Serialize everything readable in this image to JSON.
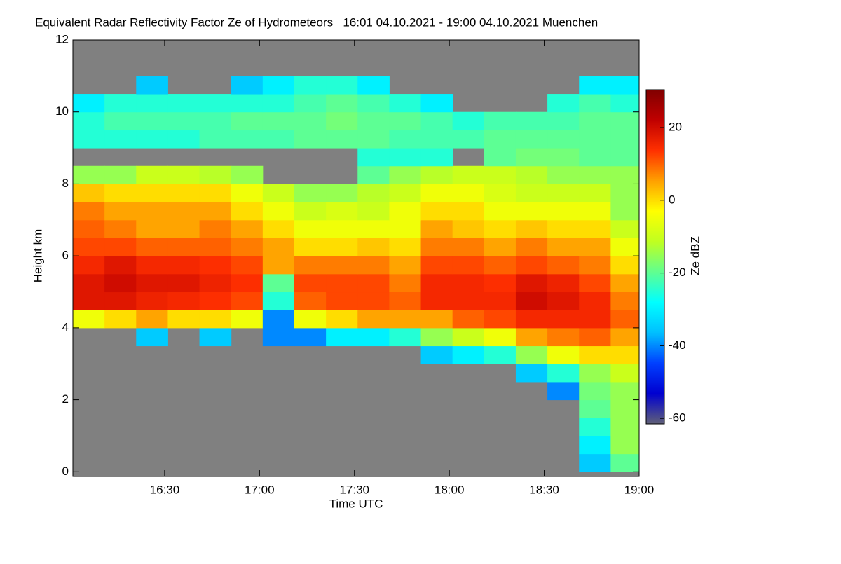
{
  "chart_data": {
    "type": "heatmap",
    "title": "Equivalent Radar Reflectivity Factor Ze of Hydrometeors   16:01 04.10.2021 - 19:00 04.10.2021 Muenchen",
    "xlabel": "Time UTC",
    "ylabel": "Height km",
    "colorbar_label": "Ze dBZ",
    "x": [
      966,
      976,
      986,
      996,
      1006,
      1016,
      1026,
      1036,
      1046,
      1056,
      1066,
      1076,
      1086,
      1096,
      1106,
      1116,
      1126,
      1136
    ],
    "y": [
      0.25,
      0.75,
      1.25,
      1.75,
      2.25,
      2.75,
      3.25,
      3.75,
      4.25,
      4.75,
      5.25,
      5.75,
      6.25,
      6.75,
      7.25,
      7.75,
      8.25,
      8.75,
      9.25,
      9.75,
      10.25,
      10.75,
      11.25,
      11.75
    ],
    "z": [
      [
        null,
        null,
        null,
        null,
        null,
        null,
        null,
        null,
        null,
        null,
        null,
        null,
        null,
        null,
        null,
        null,
        -35,
        -20
      ],
      [
        null,
        null,
        null,
        null,
        null,
        null,
        null,
        null,
        null,
        null,
        null,
        null,
        null,
        null,
        null,
        null,
        -30,
        -15
      ],
      [
        null,
        null,
        null,
        null,
        null,
        null,
        null,
        null,
        null,
        null,
        null,
        null,
        null,
        null,
        null,
        null,
        -25,
        -15
      ],
      [
        null,
        null,
        null,
        null,
        null,
        null,
        null,
        null,
        null,
        null,
        null,
        null,
        null,
        null,
        null,
        null,
        -20,
        -15
      ],
      [
        null,
        null,
        null,
        null,
        null,
        null,
        null,
        null,
        null,
        null,
        null,
        null,
        null,
        null,
        null,
        -40,
        -18,
        -15
      ],
      [
        null,
        null,
        null,
        null,
        null,
        null,
        null,
        null,
        null,
        null,
        null,
        null,
        null,
        null,
        -35,
        -25,
        -15,
        -10
      ],
      [
        null,
        null,
        null,
        null,
        null,
        null,
        null,
        null,
        null,
        null,
        null,
        -35,
        -30,
        -25,
        -15,
        -5,
        0,
        0
      ],
      [
        null,
        null,
        -35,
        null,
        -35,
        null,
        -40,
        -40,
        -30,
        -30,
        -25,
        -15,
        -10,
        -5,
        5,
        8,
        10,
        5
      ],
      [
        -5,
        0,
        5,
        0,
        0,
        -5,
        -40,
        -5,
        0,
        5,
        5,
        5,
        10,
        12,
        15,
        15,
        15,
        10
      ],
      [
        18,
        18,
        16,
        15,
        14,
        12,
        -25,
        10,
        12,
        12,
        10,
        15,
        15,
        15,
        20,
        18,
        15,
        8
      ],
      [
        18,
        20,
        18,
        18,
        16,
        14,
        -20,
        12,
        12,
        12,
        8,
        15,
        15,
        14,
        18,
        16,
        12,
        5
      ],
      [
        15,
        18,
        15,
        15,
        14,
        12,
        5,
        8,
        8,
        8,
        5,
        12,
        12,
        10,
        12,
        10,
        8,
        0
      ],
      [
        12,
        12,
        10,
        10,
        10,
        8,
        5,
        0,
        0,
        2,
        0,
        8,
        8,
        5,
        8,
        5,
        5,
        -5
      ],
      [
        10,
        8,
        5,
        5,
        8,
        5,
        0,
        -5,
        -5,
        -5,
        -5,
        5,
        2,
        0,
        2,
        0,
        0,
        -10
      ],
      [
        8,
        5,
        5,
        5,
        5,
        0,
        -5,
        -10,
        -8,
        -10,
        -5,
        0,
        0,
        -5,
        -5,
        -5,
        -5,
        -15
      ],
      [
        2,
        0,
        0,
        0,
        0,
        -5,
        -10,
        -15,
        -15,
        -12,
        -10,
        -5,
        -5,
        -8,
        -10,
        -10,
        -10,
        -15
      ],
      [
        -15,
        -15,
        -10,
        -10,
        -12,
        -15,
        null,
        null,
        null,
        -20,
        -15,
        -12,
        -10,
        -10,
        -12,
        -15,
        -15,
        -15
      ],
      [
        null,
        null,
        null,
        null,
        null,
        null,
        null,
        null,
        null,
        -25,
        -25,
        -25,
        null,
        -20,
        -18,
        -18,
        -20,
        -20
      ],
      [
        -25,
        -25,
        -25,
        -25,
        -22,
        -22,
        -22,
        -20,
        -20,
        -20,
        -22,
        -22,
        -22,
        -20,
        -20,
        -20,
        -20,
        -20
      ],
      [
        -25,
        -22,
        -22,
        -22,
        -22,
        -20,
        -20,
        -20,
        -18,
        -20,
        -20,
        -22,
        -25,
        -22,
        -22,
        -22,
        -20,
        -20
      ],
      [
        -30,
        -25,
        -25,
        -25,
        -25,
        -25,
        -25,
        -22,
        -20,
        -22,
        -25,
        -30,
        null,
        null,
        null,
        -25,
        -22,
        -25
      ],
      [
        null,
        null,
        -35,
        null,
        null,
        -35,
        -30,
        -25,
        -25,
        -30,
        null,
        null,
        null,
        null,
        null,
        null,
        -30,
        -30
      ],
      [
        null,
        null,
        null,
        null,
        null,
        null,
        null,
        null,
        null,
        null,
        null,
        null,
        null,
        null,
        null,
        null,
        null,
        null
      ],
      [
        null,
        null,
        null,
        null,
        null,
        null,
        null,
        null,
        null,
        null,
        null,
        null,
        null,
        null,
        null,
        null,
        null,
        null
      ]
    ],
    "xlim": [
      961,
      1140
    ],
    "xticks": [
      {
        "value": 990,
        "label": "16:30"
      },
      {
        "value": 1020,
        "label": "17:00"
      },
      {
        "value": 1050,
        "label": "17:30"
      },
      {
        "value": 1080,
        "label": "18:00"
      },
      {
        "value": 1110,
        "label": "18:30"
      },
      {
        "value": 1140,
        "label": "19:00"
      }
    ],
    "ylim": [
      -0.13,
      12
    ],
    "yticks": [
      0,
      2,
      4,
      6,
      8,
      10,
      12
    ],
    "zlim": [
      -61.5,
      30.4
    ],
    "zticks": [
      -60,
      -40,
      -20,
      0,
      20
    ],
    "background": "#808080",
    "colormap": [
      "#606078",
      "#0000d0",
      "#0040ff",
      "#00c0ff",
      "#00ffff",
      "#60ff90",
      "#c0ff20",
      "#ffff00",
      "#ffa000",
      "#ff3000",
      "#c00000",
      "#800000"
    ]
  }
}
